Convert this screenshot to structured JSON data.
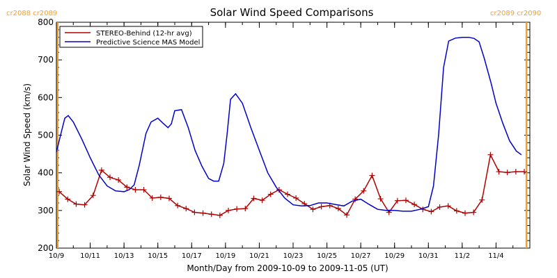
{
  "chart_data": {
    "type": "line",
    "title": "Solar Wind Speed Comparisons",
    "xlabel": "Month/Day from 2009-10-09 to 2009-11-05 (UT)",
    "ylabel": "Solar Wind Speed (km/s)",
    "xlim": [
      0,
      28
    ],
    "ylim": [
      200,
      800
    ],
    "x_ticks": [
      {
        "x": 0,
        "label": "10/9"
      },
      {
        "x": 2,
        "label": "10/11"
      },
      {
        "x": 4,
        "label": "10/13"
      },
      {
        "x": 6,
        "label": "10/15"
      },
      {
        "x": 8,
        "label": "10/17"
      },
      {
        "x": 10,
        "label": "10/19"
      },
      {
        "x": 12,
        "label": "10/21"
      },
      {
        "x": 14,
        "label": "10/23"
      },
      {
        "x": 16,
        "label": "10/25"
      },
      {
        "x": 18,
        "label": "10/27"
      },
      {
        "x": 20,
        "label": "10/29"
      },
      {
        "x": 22,
        "label": "10/31"
      },
      {
        "x": 24,
        "label": "11/2"
      },
      {
        "x": 26,
        "label": "11/4"
      }
    ],
    "y_ticks": [
      200,
      300,
      400,
      500,
      600,
      700,
      800
    ],
    "carrington_markers": [
      {
        "x": 0.07,
        "label": "cr2088 cr2089"
      },
      {
        "x": 27.8,
        "label": "cr2089 cr2090"
      }
    ],
    "marker_color": "#f0a030",
    "legend_position": "top-left",
    "series": [
      {
        "name": "STEREO-Behind (12-hr avg)",
        "color": "#b00000",
        "marker": "plus",
        "x": [
          0.17,
          0.67,
          1.17,
          1.67,
          2.17,
          2.67,
          3.17,
          3.67,
          4.17,
          4.67,
          5.17,
          5.67,
          6.17,
          6.67,
          7.17,
          7.67,
          8.17,
          8.67,
          9.17,
          9.67,
          10.17,
          10.67,
          11.17,
          11.67,
          12.17,
          12.67,
          13.17,
          13.67,
          14.17,
          14.67,
          15.17,
          15.67,
          16.17,
          16.67,
          17.17,
          17.67,
          18.17,
          18.67,
          19.17,
          19.67,
          20.17,
          20.67,
          21.17,
          21.67,
          22.17,
          22.67,
          23.17,
          23.67,
          24.17,
          24.67,
          25.17,
          25.67,
          26.17,
          26.67,
          27.17,
          27.67
        ],
        "y": [
          350,
          330,
          317,
          315,
          340,
          407,
          388,
          381,
          362,
          355,
          355,
          333,
          335,
          332,
          313,
          305,
          295,
          293,
          290,
          287,
          300,
          304,
          305,
          332,
          327,
          343,
          355,
          343,
          333,
          318,
          303,
          310,
          313,
          305,
          288,
          330,
          352,
          393,
          331,
          295,
          326,
          327,
          316,
          303,
          297,
          309,
          312,
          299,
          293,
          295,
          328,
          448,
          403,
          401,
          403,
          403
        ]
      },
      {
        "name": "Predictive Science MAS Model",
        "color": "#0000cc",
        "x": [
          0,
          0.3,
          0.5,
          0.7,
          1,
          1.5,
          2,
          2.5,
          3,
          3.5,
          4,
          4.3,
          4.6,
          4.9,
          5.3,
          5.6,
          6,
          6.3,
          6.6,
          6.8,
          7,
          7.4,
          7.8,
          8.2,
          8.6,
          9,
          9.3,
          9.6,
          9.9,
          10.1,
          10.3,
          10.6,
          11,
          11.5,
          12,
          12.5,
          13,
          13.5,
          14,
          14.5,
          15,
          15.5,
          16,
          16.5,
          17,
          17.5,
          18,
          18.5,
          19,
          19.5,
          20,
          20.5,
          21,
          21.5,
          22,
          22.3,
          22.6,
          22.9,
          23.2,
          23.6,
          24,
          24.4,
          24.7,
          25,
          25.3,
          25.7,
          26,
          26.4,
          26.8,
          27.2,
          27.5
        ],
        "y": [
          455,
          510,
          545,
          552,
          535,
          490,
          440,
          395,
          365,
          352,
          350,
          355,
          368,
          420,
          505,
          535,
          545,
          532,
          520,
          530,
          565,
          568,
          520,
          460,
          418,
          385,
          378,
          378,
          425,
          505,
          595,
          610,
          585,
          520,
          460,
          400,
          362,
          333,
          315,
          312,
          313,
          320,
          320,
          316,
          312,
          325,
          330,
          316,
          303,
          300,
          300,
          298,
          298,
          303,
          310,
          365,
          500,
          680,
          750,
          758,
          760,
          760,
          757,
          748,
          705,
          640,
          585,
          532,
          485,
          458,
          448
        ]
      }
    ]
  }
}
